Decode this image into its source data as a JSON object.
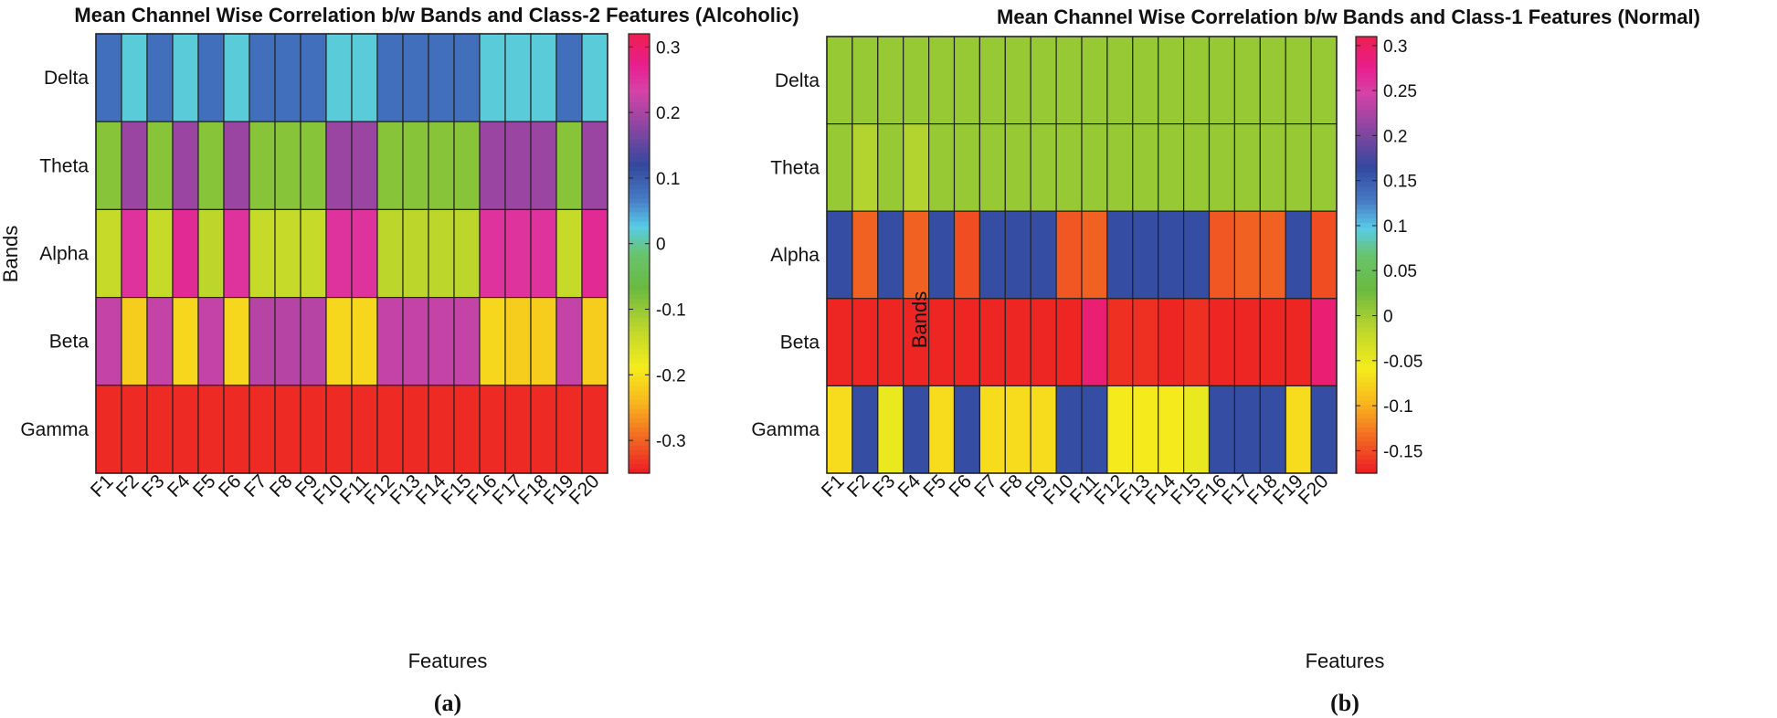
{
  "chart_data": [
    {
      "type": "heatmap",
      "panel_label": "(a)",
      "title": "Mean Channel Wise Correlation b/w Bands and Class-2 Features (Alcoholic)",
      "xlabel": "Features",
      "ylabel": "Bands",
      "x": [
        "F1",
        "F2",
        "F3",
        "F4",
        "F5",
        "F6",
        "F7",
        "F8",
        "F9",
        "F10",
        "F11",
        "F12",
        "F13",
        "F14",
        "F15",
        "F16",
        "F17",
        "F18",
        "F19",
        "F20"
      ],
      "y": [
        "Delta",
        "Theta",
        "Alpha",
        "Beta",
        "Gamma"
      ],
      "clim": [
        -0.35,
        0.32
      ],
      "colorbar_ticks": [
        0.3,
        0.2,
        0.1,
        0,
        -0.1,
        -0.2,
        -0.3
      ],
      "colorbar_labels": [
        "0.3",
        "0.2",
        "0.1",
        "0",
        "-0.1",
        "-0.2",
        "-0.3"
      ],
      "values": [
        [
          0.08,
          0.02,
          0.08,
          0.02,
          0.08,
          0.02,
          0.08,
          0.08,
          0.08,
          0.02,
          0.02,
          0.08,
          0.08,
          0.08,
          0.08,
          0.02,
          0.02,
          0.02,
          0.08,
          0.02
        ],
        [
          -0.09,
          0.19,
          -0.09,
          0.19,
          -0.09,
          0.19,
          -0.09,
          -0.09,
          -0.09,
          0.19,
          0.19,
          -0.09,
          -0.09,
          -0.09,
          -0.09,
          0.19,
          0.19,
          0.19,
          -0.09,
          0.19
        ],
        [
          -0.14,
          0.25,
          -0.14,
          0.26,
          -0.13,
          0.25,
          -0.14,
          -0.14,
          -0.14,
          0.25,
          0.25,
          -0.13,
          -0.13,
          -0.13,
          -0.13,
          0.25,
          0.25,
          0.25,
          -0.14,
          0.26
        ],
        [
          0.22,
          -0.22,
          0.22,
          -0.21,
          0.22,
          -0.21,
          0.21,
          0.21,
          0.21,
          -0.21,
          -0.21,
          0.22,
          0.22,
          0.22,
          0.22,
          -0.21,
          -0.22,
          -0.22,
          0.22,
          -0.22
        ],
        [
          -0.34,
          -0.34,
          -0.34,
          -0.34,
          -0.34,
          -0.34,
          -0.34,
          -0.34,
          -0.34,
          -0.34,
          -0.34,
          -0.34,
          -0.34,
          -0.34,
          -0.34,
          -0.34,
          -0.34,
          -0.34,
          -0.34,
          -0.34
        ]
      ]
    },
    {
      "type": "heatmap",
      "panel_label": "(b)",
      "title": "Mean Channel Wise Correlation b/w Bands and Class-1 Features (Normal)",
      "xlabel": "Features",
      "ylabel": "Bands",
      "x": [
        "F1",
        "F2",
        "F3",
        "F4",
        "F5",
        "F6",
        "F7",
        "F8",
        "F9",
        "F10",
        "F11",
        "F12",
        "F13",
        "F14",
        "F15",
        "F16",
        "F17",
        "F18",
        "F19",
        "F20"
      ],
      "y": [
        "Delta",
        "Theta",
        "Alpha",
        "Beta",
        "Gamma"
      ],
      "clim": [
        -0.175,
        0.31
      ],
      "colorbar_ticks": [
        0.3,
        0.25,
        0.2,
        0.15,
        0.1,
        0.05,
        0,
        -0.05,
        -0.1,
        -0.15
      ],
      "colorbar_labels": [
        "0.3",
        "0.25",
        "0.2",
        "0.15",
        "0.1",
        "0.05",
        "0",
        "-0.05",
        "-0.1",
        "-0.15"
      ],
      "values": [
        [
          0.005,
          0.005,
          0.005,
          0.005,
          0.005,
          0.005,
          0.005,
          0.005,
          0.005,
          0.005,
          0.005,
          0.005,
          0.005,
          0.005,
          0.005,
          0.005,
          0.005,
          0.005,
          0.005,
          0.005
        ],
        [
          0.005,
          -0.01,
          0.005,
          -0.01,
          0.005,
          0.005,
          0.005,
          0.005,
          0.005,
          0.005,
          0.005,
          0.005,
          0.005,
          0.005,
          0.005,
          0.005,
          0.005,
          0.005,
          0.005,
          0.005
        ],
        [
          0.16,
          -0.14,
          0.16,
          -0.14,
          0.16,
          -0.15,
          0.16,
          0.16,
          0.16,
          -0.145,
          -0.14,
          0.16,
          0.16,
          0.16,
          0.16,
          -0.145,
          -0.14,
          -0.14,
          0.16,
          -0.15
        ],
        [
          -0.17,
          -0.17,
          -0.17,
          -0.17,
          -0.17,
          -0.17,
          -0.17,
          -0.17,
          -0.17,
          -0.17,
          0.29,
          -0.165,
          -0.165,
          -0.17,
          -0.165,
          -0.17,
          -0.17,
          -0.17,
          -0.17,
          0.29
        ],
        [
          -0.07,
          0.16,
          -0.05,
          0.16,
          -0.07,
          0.16,
          -0.07,
          -0.07,
          -0.07,
          0.16,
          0.16,
          -0.06,
          -0.06,
          -0.06,
          -0.05,
          0.16,
          0.16,
          0.16,
          -0.07,
          0.16
        ]
      ]
    }
  ]
}
